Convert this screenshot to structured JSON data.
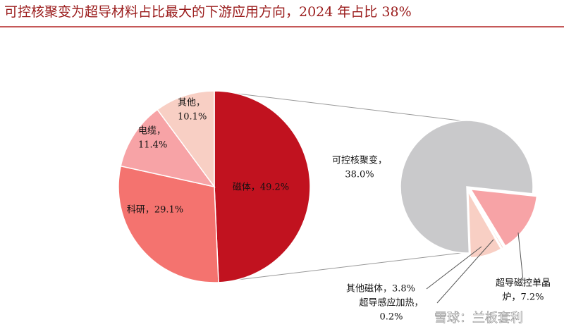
{
  "chart_data": [
    {
      "type": "pie",
      "title": "可控核聚变为超导材料占比最大的下游应用方向，2024 年占比 38%",
      "values": [
        49.2,
        29.1,
        11.4,
        10.1
      ],
      "value_labels": [
        [
          "磁体，49.2%"
        ],
        [
          "科研，29.1%"
        ],
        [
          "电缆，",
          "11.4%"
        ],
        [
          "其他，",
          "10.1%"
        ]
      ],
      "colors": [
        "#c1121f",
        "#f4736f",
        "#f7a3a6",
        "#f8cfc4"
      ]
    },
    {
      "type": "pie",
      "values": [
        7.2,
        0.2,
        3.8,
        38.0
      ],
      "value_labels": [
        [
          "超导磁控单晶",
          "炉，7.2%"
        ],
        [
          "超导感应加热，",
          "0.2%"
        ],
        [
          "其他磁体，3.8%"
        ],
        [
          "可控核聚变，",
          "38.0%"
        ]
      ],
      "colors": [
        "#f7a3a6",
        "#f8cfc4",
        "#f8cfc4",
        "#c9c9cb"
      ]
    }
  ],
  "watermark": "雪球：兰板套利"
}
